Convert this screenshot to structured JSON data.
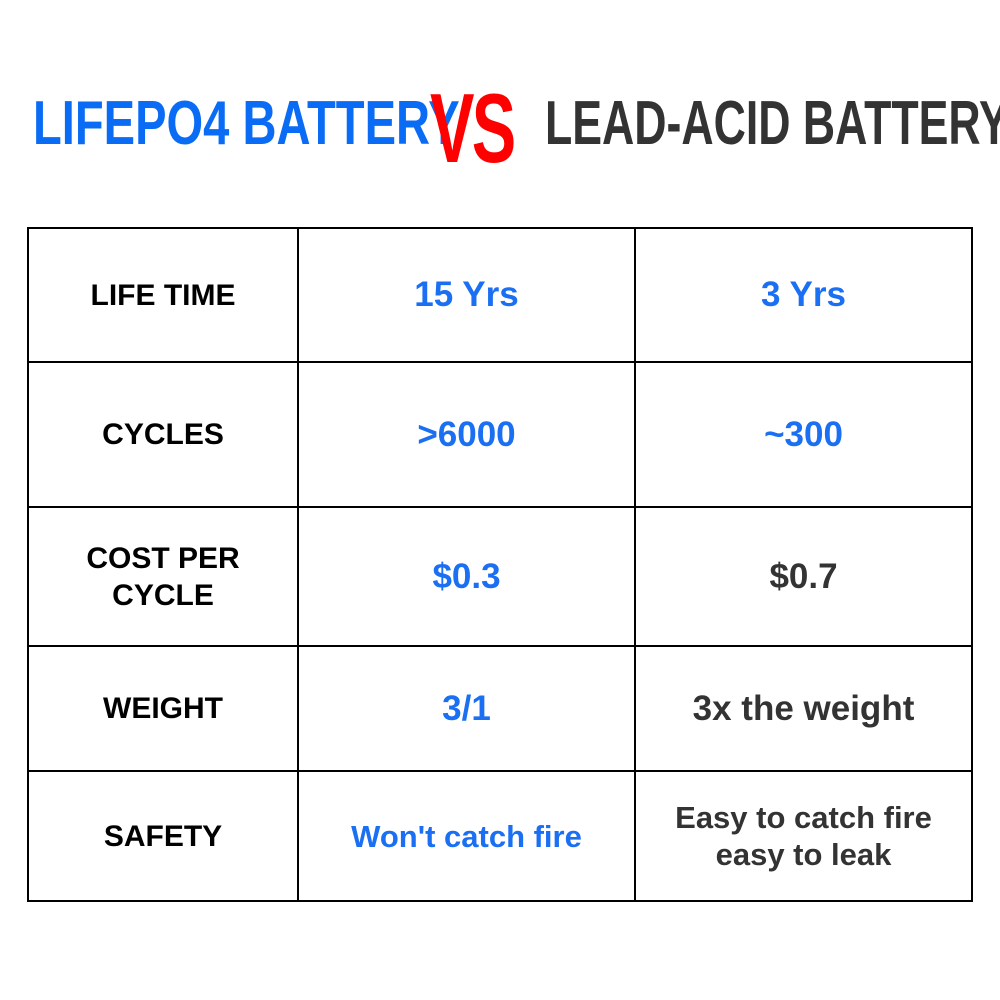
{
  "title": {
    "left": "LIFEPO4 BATTERY",
    "vs": "VS",
    "right": "LEAD-ACID BATTERY"
  },
  "colors": {
    "lifepo4": "#1a6ff2",
    "vs": "#ff0000",
    "lead_acid": "#333333"
  },
  "rows": [
    {
      "label": "LIFE TIME",
      "lifepo4": "15 Yrs",
      "lead_acid": "3 Yrs"
    },
    {
      "label_line1": "COST PER",
      "label_line2": "CYCLE"
    },
    {
      "label": "CYCLES",
      "lifepo4": ">6000",
      "lead_acid": "~300"
    },
    {
      "label": "WEIGHT",
      "lifepo4": "3/1",
      "lead_acid": "3x the weight"
    },
    {
      "label": "SAFETY",
      "lifepo4": "Won't catch fire",
      "lead_acid_line1": "Easy to catch fire",
      "lead_acid_line2": "easy to leak"
    }
  ],
  "cost": {
    "lifepo4": "$0.3",
    "lead_acid": "$0.7"
  }
}
